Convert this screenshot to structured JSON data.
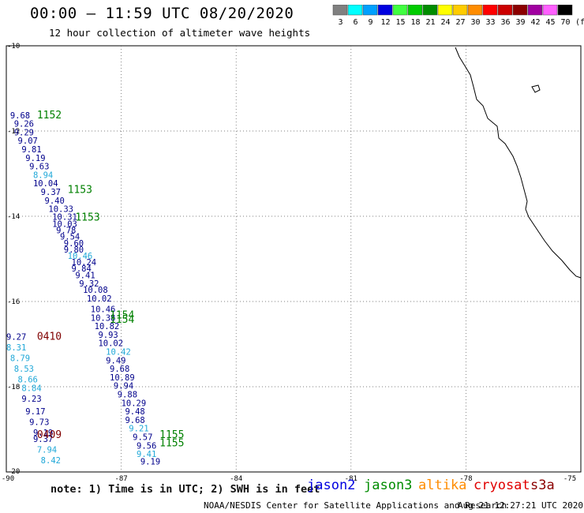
{
  "header": {
    "title": "00:00 — 11:59 UTC 08/20/2020",
    "subtitle": "12 hour collection of altimeter wave heights"
  },
  "color_scale": {
    "bins": [
      {
        "label": "3",
        "color": "#808080"
      },
      {
        "label": "6",
        "color": "#00ffff"
      },
      {
        "label": "9",
        "color": "#00a0ff"
      },
      {
        "label": "12",
        "color": "#0000e0"
      },
      {
        "label": "15",
        "color": "#40ff40"
      },
      {
        "label": "18",
        "color": "#00cc00"
      },
      {
        "label": "21",
        "color": "#008c00"
      },
      {
        "label": "24",
        "color": "#ffff00"
      },
      {
        "label": "27",
        "color": "#ffcc00"
      },
      {
        "label": "30",
        "color": "#ff8c00"
      },
      {
        "label": "33",
        "color": "#ff0000"
      },
      {
        "label": "36",
        "color": "#cc0000"
      },
      {
        "label": "39",
        "color": "#8b0000"
      },
      {
        "label": "42",
        "color": "#a000a0"
      },
      {
        "label": "45",
        "color": "#ff60ff"
      },
      {
        "label": "70",
        "color": "#000000"
      }
    ],
    "unit": "(ft)"
  },
  "chart_data": {
    "type": "scatter",
    "xlim": [
      -90,
      -75
    ],
    "ylim": [
      -20,
      -10
    ],
    "x_ticks": [
      "-90",
      "-87",
      "-84",
      "-81",
      "-78",
      "-75"
    ],
    "y_ticks": [
      "-10",
      "-12",
      "-14",
      "-16",
      "-18",
      "-20"
    ],
    "grid": true,
    "pass_labels": [
      {
        "text": "1152",
        "lon": -89.2,
        "lat": -11.7,
        "color": "#008000"
      },
      {
        "text": "1153",
        "lon": -88.4,
        "lat": -13.45,
        "color": "#008000"
      },
      {
        "text": "1153",
        "lon": -88.2,
        "lat": -14.1,
        "color": "#008000"
      },
      {
        "text": "1154",
        "lon": -87.3,
        "lat": -16.4,
        "color": "#008000"
      },
      {
        "text": "1154",
        "lon": -87.3,
        "lat": -16.5,
        "color": "#008000"
      },
      {
        "text": "0410",
        "lon": -89.2,
        "lat": -16.9,
        "color": "#800000"
      },
      {
        "text": "0409",
        "lon": -89.2,
        "lat": -19.2,
        "color": "#800000"
      },
      {
        "text": "1155",
        "lon": -86.0,
        "lat": -19.2,
        "color": "#008000"
      },
      {
        "text": "1155",
        "lon": -86.0,
        "lat": -19.4,
        "color": "#008000"
      }
    ],
    "points": [
      {
        "v": "9.68",
        "lon": -89.9,
        "lat": -11.7,
        "c": "#00008b"
      },
      {
        "v": "9.26",
        "lon": -89.8,
        "lat": -11.9,
        "c": "#00008b"
      },
      {
        "v": "9.29",
        "lon": -89.8,
        "lat": -12.1,
        "c": "#00008b"
      },
      {
        "v": "9.07",
        "lon": -89.7,
        "lat": -12.3,
        "c": "#00008b"
      },
      {
        "v": "9.81",
        "lon": -89.6,
        "lat": -12.5,
        "c": "#00008b"
      },
      {
        "v": "9.19",
        "lon": -89.5,
        "lat": -12.7,
        "c": "#00008b"
      },
      {
        "v": "9.63",
        "lon": -89.4,
        "lat": -12.9,
        "c": "#00008b"
      },
      {
        "v": "8.94",
        "lon": -89.3,
        "lat": -13.1,
        "c": "#20a8d8"
      },
      {
        "v": "10.04",
        "lon": -89.3,
        "lat": -13.3,
        "c": "#00008b"
      },
      {
        "v": "9.37",
        "lon": -89.1,
        "lat": -13.5,
        "c": "#00008b"
      },
      {
        "v": "9.40",
        "lon": -89.0,
        "lat": -13.7,
        "c": "#00008b"
      },
      {
        "v": "10.33",
        "lon": -88.9,
        "lat": -13.9,
        "c": "#00008b"
      },
      {
        "v": "10.31",
        "lon": -88.8,
        "lat": -14.08,
        "c": "#00008b"
      },
      {
        "v": "10.03",
        "lon": -88.8,
        "lat": -14.25,
        "c": "#00008b"
      },
      {
        "v": "9.78",
        "lon": -88.7,
        "lat": -14.4,
        "c": "#00008b"
      },
      {
        "v": "9.54",
        "lon": -88.6,
        "lat": -14.55,
        "c": "#00008b"
      },
      {
        "v": "9.60",
        "lon": -88.5,
        "lat": -14.7,
        "c": "#00008b"
      },
      {
        "v": "9.80",
        "lon": -88.5,
        "lat": -14.85,
        "c": "#00008b"
      },
      {
        "v": "10.46",
        "lon": -88.4,
        "lat": -15.0,
        "c": "#20a8d8"
      },
      {
        "v": "10.24",
        "lon": -88.3,
        "lat": -15.15,
        "c": "#00008b"
      },
      {
        "v": "9.84",
        "lon": -88.3,
        "lat": -15.3,
        "c": "#00008b"
      },
      {
        "v": "9.41",
        "lon": -88.2,
        "lat": -15.45,
        "c": "#00008b"
      },
      {
        "v": "9.32",
        "lon": -88.1,
        "lat": -15.65,
        "c": "#00008b"
      },
      {
        "v": "10.08",
        "lon": -88.0,
        "lat": -15.8,
        "c": "#00008b"
      },
      {
        "v": "10.02",
        "lon": -87.9,
        "lat": -16.0,
        "c": "#00008b"
      },
      {
        "v": "10.46",
        "lon": -87.8,
        "lat": -16.25,
        "c": "#00008b"
      },
      {
        "v": "10.38",
        "lon": -87.8,
        "lat": -16.45,
        "c": "#00008b"
      },
      {
        "v": "10.82",
        "lon": -87.7,
        "lat": -16.65,
        "c": "#00008b"
      },
      {
        "v": "9.93",
        "lon": -87.6,
        "lat": -16.85,
        "c": "#00008b"
      },
      {
        "v": "10.02",
        "lon": -87.6,
        "lat": -17.05,
        "c": "#00008b"
      },
      {
        "v": "10.42",
        "lon": -87.4,
        "lat": -17.25,
        "c": "#20a8d8"
      },
      {
        "v": "9.49",
        "lon": -87.4,
        "lat": -17.45,
        "c": "#00008b"
      },
      {
        "v": "9.68",
        "lon": -87.3,
        "lat": -17.65,
        "c": "#00008b"
      },
      {
        "v": "10.89",
        "lon": -87.3,
        "lat": -17.85,
        "c": "#00008b"
      },
      {
        "v": "9.94",
        "lon": -87.2,
        "lat": -18.05,
        "c": "#00008b"
      },
      {
        "v": "9.88",
        "lon": -87.1,
        "lat": -18.25,
        "c": "#00008b"
      },
      {
        "v": "10.29",
        "lon": -87.0,
        "lat": -18.45,
        "c": "#00008b"
      },
      {
        "v": "9.48",
        "lon": -86.9,
        "lat": -18.65,
        "c": "#00008b"
      },
      {
        "v": "9.68",
        "lon": -86.9,
        "lat": -18.85,
        "c": "#00008b"
      },
      {
        "v": "9.21",
        "lon": -86.8,
        "lat": -19.05,
        "c": "#20a8d8"
      },
      {
        "v": "9.57",
        "lon": -86.7,
        "lat": -19.25,
        "c": "#00008b"
      },
      {
        "v": "9.56",
        "lon": -86.6,
        "lat": -19.45,
        "c": "#00008b"
      },
      {
        "v": "9.41",
        "lon": -86.6,
        "lat": -19.65,
        "c": "#20a8d8"
      },
      {
        "v": "9.19",
        "lon": -86.5,
        "lat": -19.82,
        "c": "#00008b"
      },
      {
        "v": "9.27",
        "lon": -90.0,
        "lat": -16.9,
        "c": "#00008b"
      },
      {
        "v": "8.31",
        "lon": -90.0,
        "lat": -17.15,
        "c": "#20a8d8"
      },
      {
        "v": "8.79",
        "lon": -89.9,
        "lat": -17.4,
        "c": "#20a8d8"
      },
      {
        "v": "8.53",
        "lon": -89.8,
        "lat": -17.65,
        "c": "#20a8d8"
      },
      {
        "v": "8.66",
        "lon": -89.7,
        "lat": -17.9,
        "c": "#20a8d8"
      },
      {
        "v": "8.84",
        "lon": -89.6,
        "lat": -18.1,
        "c": "#20a8d8"
      },
      {
        "v": "9.23",
        "lon": -89.6,
        "lat": -18.35,
        "c": "#00008b"
      },
      {
        "v": "9.17",
        "lon": -89.5,
        "lat": -18.65,
        "c": "#00008b"
      },
      {
        "v": "9.73",
        "lon": -89.4,
        "lat": -18.9,
        "c": "#00008b"
      },
      {
        "v": "9.19",
        "lon": -89.3,
        "lat": -19.15,
        "c": "#00008b"
      },
      {
        "v": "9.37",
        "lon": -89.3,
        "lat": -19.3,
        "c": "#00008b"
      },
      {
        "v": "7.94",
        "lon": -89.2,
        "lat": -19.55,
        "c": "#20a8d8"
      },
      {
        "v": "8.42",
        "lon": -89.1,
        "lat": -19.8,
        "c": "#20a8d8"
      }
    ]
  },
  "footer": {
    "note": "note: 1) Time is in UTC; 2) SWH is in feet",
    "satellites": [
      {
        "name": "jason2",
        "color": "#0000e0"
      },
      {
        "name": "jason3",
        "color": "#008c00"
      },
      {
        "name": "altika",
        "color": "#ff8c00"
      },
      {
        "name": "cryosat",
        "color": "#e00000"
      },
      {
        "name": "s3a",
        "color": "#8b0000"
      }
    ],
    "credit_left": "NOAA/NESDIS Center for Satellite Applications and Research",
    "credit_right": "Aug 21 12:27:21 UTC 2020"
  }
}
